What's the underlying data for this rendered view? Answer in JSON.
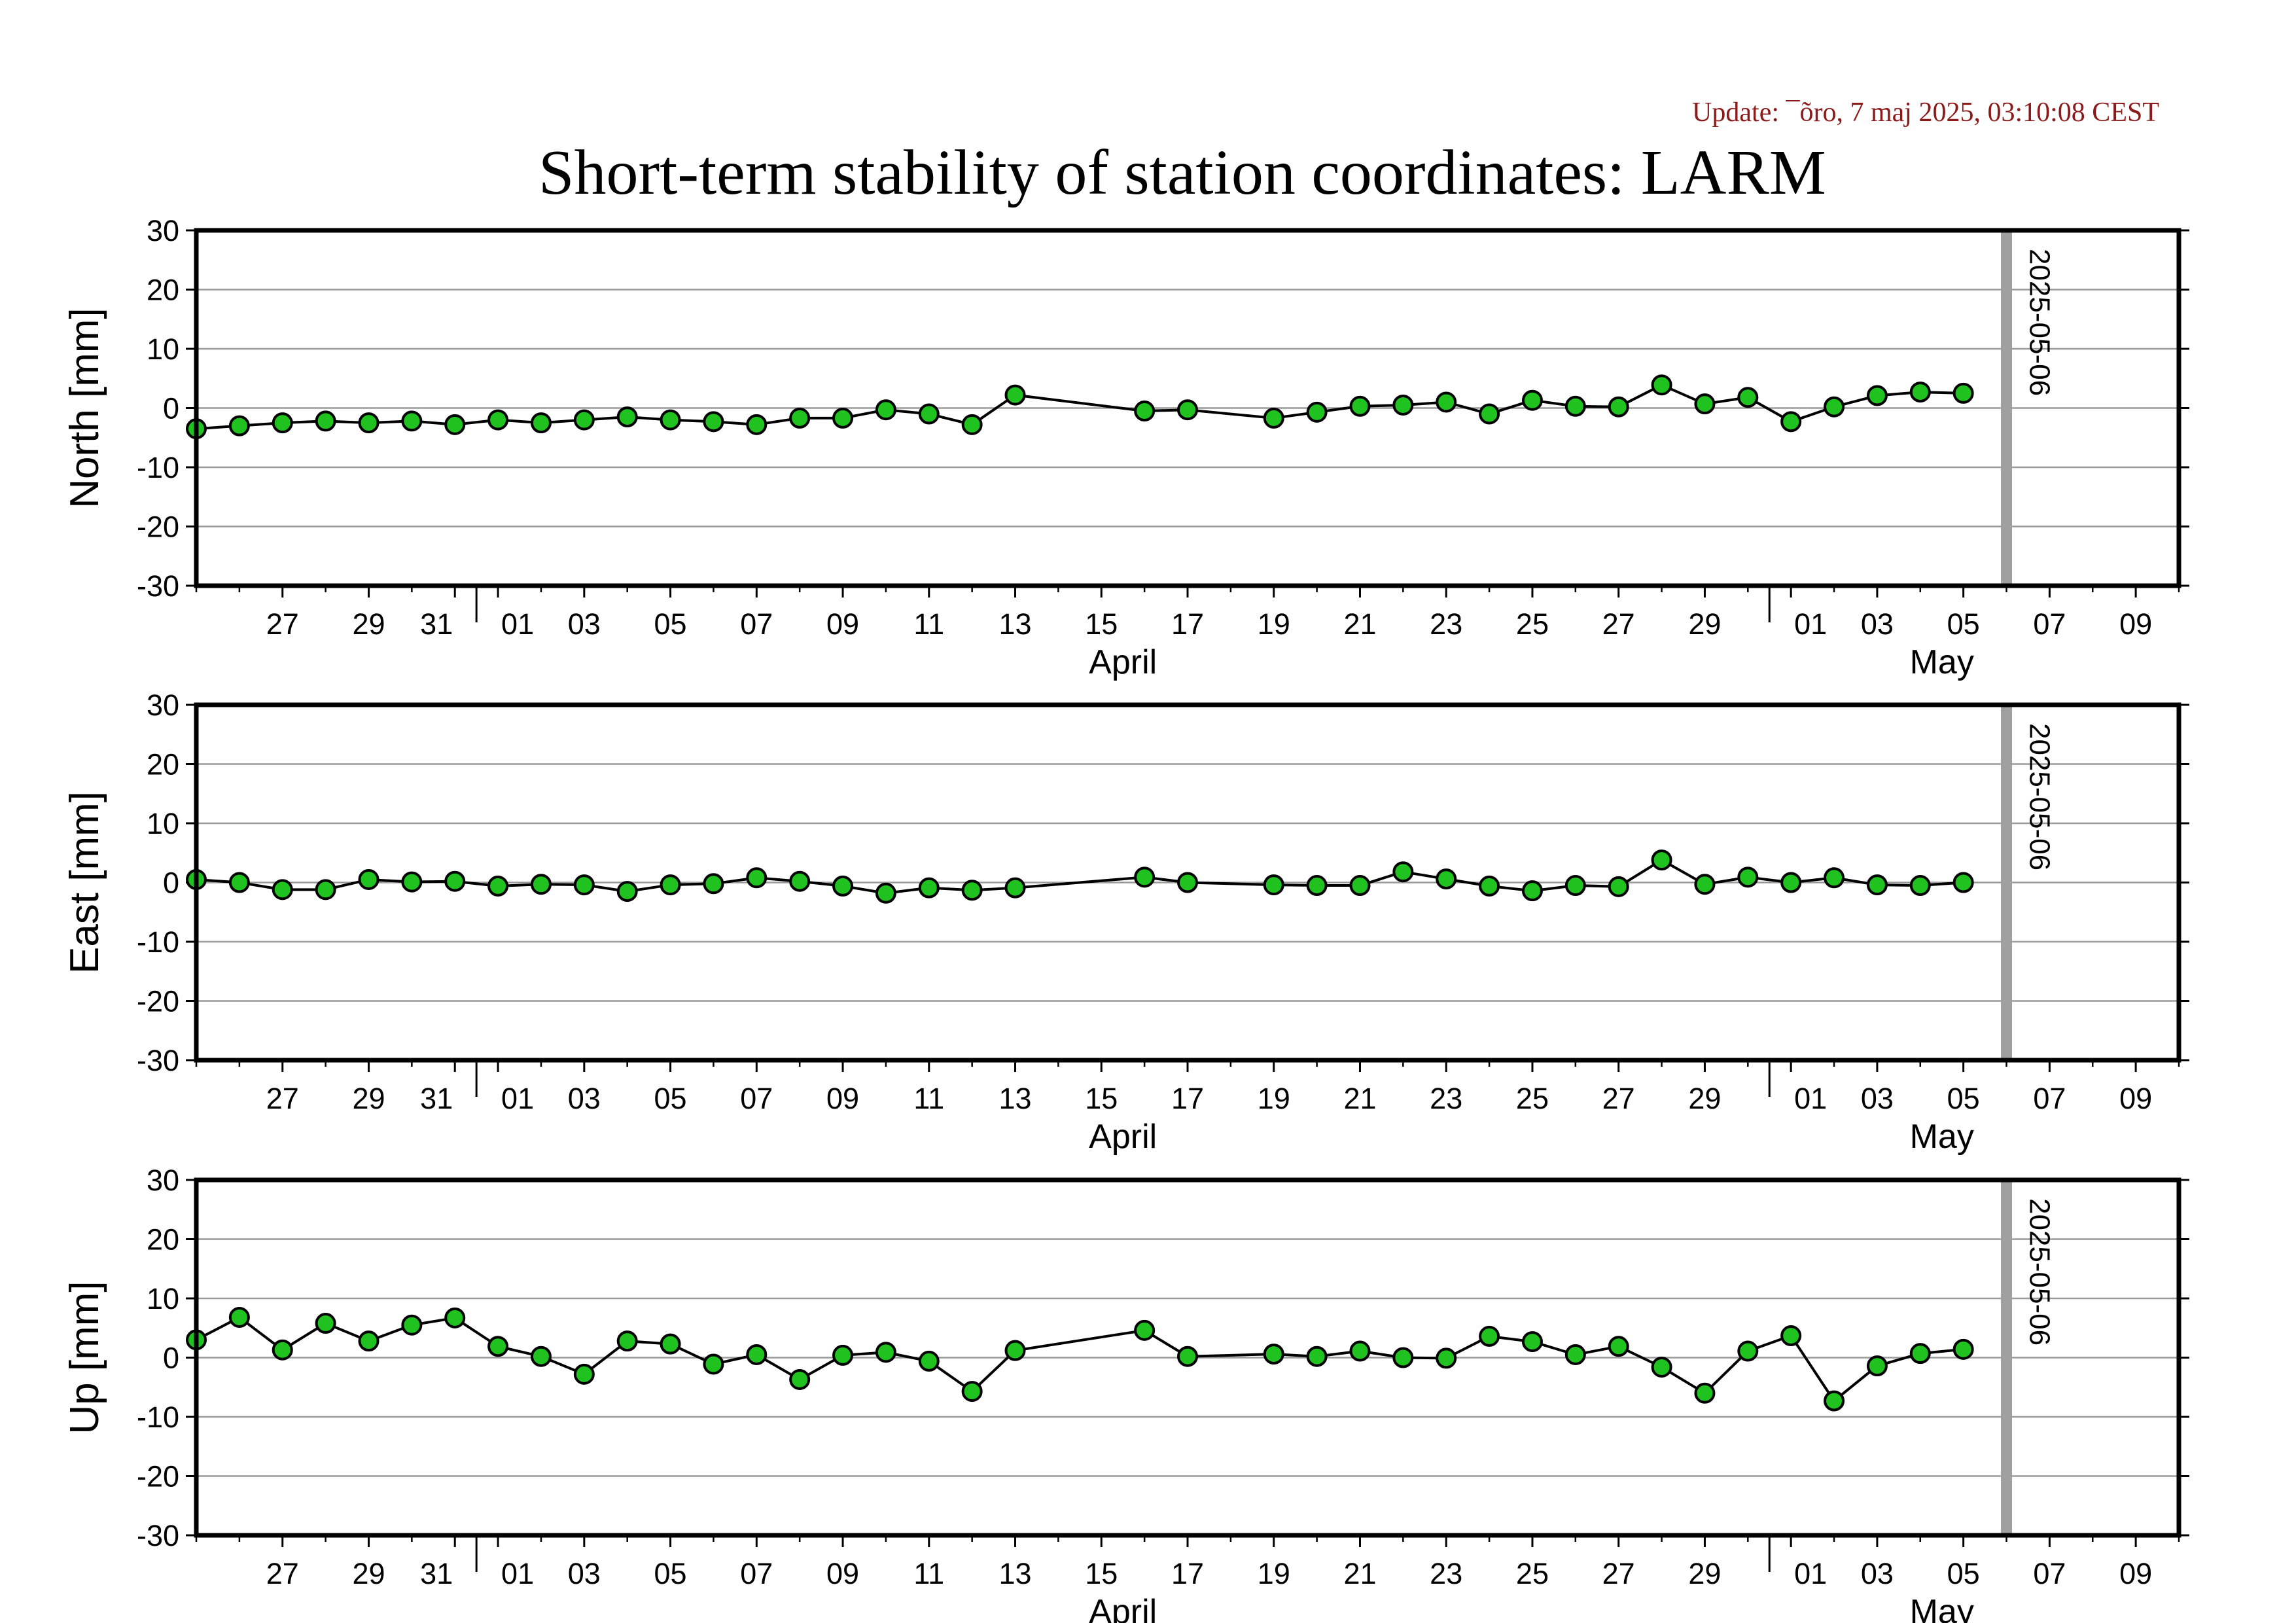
{
  "update_text": "Update: ¯õro, 7 maj 2025, 03:10:08 CEST",
  "title": "Short-term stability of station coordinates: LARM",
  "colors": {
    "marker_fill": "#1fc21f",
    "marker_edge": "#000000",
    "line": "#000000",
    "grid": "#9a9a9a",
    "vline": "#a0a0a0",
    "update": "#8b1a1a"
  },
  "chart_data": [
    {
      "type": "line",
      "ylabel": "North [mm]",
      "ylim": [
        -30,
        30
      ],
      "yticks": [
        30,
        20,
        10,
        0,
        -10,
        -20,
        -30
      ],
      "grid": true,
      "x_axis": {
        "start": "2025-03-25",
        "end": "2025-05-10",
        "tick_labels": [
          "27",
          "29",
          "31",
          "01",
          "03",
          "05",
          "07",
          "09",
          "11",
          "13",
          "15",
          "17",
          "19",
          "21",
          "23",
          "25",
          "27",
          "29",
          "01",
          "03",
          "05",
          "07",
          "09"
        ],
        "months": [
          "April",
          "May"
        ]
      },
      "vertical_marker": {
        "date": "2025-05-06",
        "label": "2025-05-06"
      },
      "series": [
        {
          "x": [
            "2025-03-25",
            "2025-03-26",
            "2025-03-27",
            "2025-03-28",
            "2025-03-29",
            "2025-03-30",
            "2025-03-31",
            "2025-04-01",
            "2025-04-02",
            "2025-04-03",
            "2025-04-04",
            "2025-04-05",
            "2025-04-06",
            "2025-04-07",
            "2025-04-08",
            "2025-04-09",
            "2025-04-10",
            "2025-04-11",
            "2025-04-12",
            "2025-04-13",
            "2025-04-16",
            "2025-04-17",
            "2025-04-19",
            "2025-04-20",
            "2025-04-21",
            "2025-04-22",
            "2025-04-23",
            "2025-04-24",
            "2025-04-25",
            "2025-04-26",
            "2025-04-27",
            "2025-04-28",
            "2025-04-29",
            "2025-04-30",
            "2025-05-01",
            "2025-05-02",
            "2025-05-03",
            "2025-05-04",
            "2025-05-05"
          ],
          "y": [
            -3.5,
            -3,
            -2.5,
            -2.2,
            -2.5,
            -2.2,
            -2.8,
            -2,
            -2.5,
            -2,
            -1.5,
            -2,
            -2.3,
            -2.8,
            -1.7,
            -1.7,
            -0.3,
            -1,
            -2.8,
            2.2,
            -0.5,
            -0.3,
            -1.7,
            -0.7,
            0.3,
            0.5,
            1,
            -1,
            1.3,
            0.3,
            0.2,
            3.9,
            0.7,
            1.8,
            -2.3,
            0.2,
            2.1,
            2.7,
            2.5
          ]
        }
      ]
    },
    {
      "type": "line",
      "ylabel": "East [mm]",
      "ylim": [
        -30,
        30
      ],
      "yticks": [
        30,
        20,
        10,
        0,
        -10,
        -20,
        -30
      ],
      "grid": true,
      "x_axis": {
        "start": "2025-03-25",
        "end": "2025-05-10",
        "tick_labels": [
          "27",
          "29",
          "31",
          "01",
          "03",
          "05",
          "07",
          "09",
          "11",
          "13",
          "15",
          "17",
          "19",
          "21",
          "23",
          "25",
          "27",
          "29",
          "01",
          "03",
          "05",
          "07",
          "09"
        ],
        "months": [
          "April",
          "May"
        ]
      },
      "vertical_marker": {
        "date": "2025-05-06",
        "label": "2025-05-06"
      },
      "series": [
        {
          "x": [
            "2025-03-25",
            "2025-03-26",
            "2025-03-27",
            "2025-03-28",
            "2025-03-29",
            "2025-03-30",
            "2025-03-31",
            "2025-04-01",
            "2025-04-02",
            "2025-04-03",
            "2025-04-04",
            "2025-04-05",
            "2025-04-06",
            "2025-04-07",
            "2025-04-08",
            "2025-04-09",
            "2025-04-10",
            "2025-04-11",
            "2025-04-12",
            "2025-04-13",
            "2025-04-16",
            "2025-04-17",
            "2025-04-19",
            "2025-04-20",
            "2025-04-21",
            "2025-04-22",
            "2025-04-23",
            "2025-04-24",
            "2025-04-25",
            "2025-04-26",
            "2025-04-27",
            "2025-04-28",
            "2025-04-29",
            "2025-04-30",
            "2025-05-01",
            "2025-05-02",
            "2025-05-03",
            "2025-05-04",
            "2025-05-05"
          ],
          "y": [
            0.5,
            0,
            -1.2,
            -1.2,
            0.5,
            0.1,
            0.2,
            -0.6,
            -0.3,
            -0.4,
            -1.5,
            -0.4,
            -0.2,
            0.8,
            0.2,
            -0.6,
            -1.8,
            -0.9,
            -1.3,
            -0.9,
            0.9,
            0,
            -0.4,
            -0.5,
            -0.5,
            1.8,
            0.6,
            -0.6,
            -1.4,
            -0.5,
            -0.7,
            3.8,
            -0.3,
            0.9,
            0,
            0.8,
            -0.4,
            -0.5,
            0
          ]
        }
      ]
    },
    {
      "type": "line",
      "ylabel": "Up [mm]",
      "ylim": [
        -30,
        30
      ],
      "yticks": [
        30,
        20,
        10,
        0,
        -10,
        -20,
        -30
      ],
      "grid": true,
      "x_axis": {
        "start": "2025-03-25",
        "end": "2025-05-10",
        "tick_labels": [
          "27",
          "29",
          "31",
          "01",
          "03",
          "05",
          "07",
          "09",
          "11",
          "13",
          "15",
          "17",
          "19",
          "21",
          "23",
          "25",
          "27",
          "29",
          "01",
          "03",
          "05",
          "07",
          "09"
        ],
        "months": [
          "April",
          "May"
        ]
      },
      "vertical_marker": {
        "date": "2025-05-06",
        "label": "2025-05-06"
      },
      "series": [
        {
          "x": [
            "2025-03-25",
            "2025-03-26",
            "2025-03-27",
            "2025-03-28",
            "2025-03-29",
            "2025-03-30",
            "2025-03-31",
            "2025-04-01",
            "2025-04-02",
            "2025-04-03",
            "2025-04-04",
            "2025-04-05",
            "2025-04-06",
            "2025-04-07",
            "2025-04-08",
            "2025-04-09",
            "2025-04-10",
            "2025-04-11",
            "2025-04-12",
            "2025-04-13",
            "2025-04-16",
            "2025-04-17",
            "2025-04-19",
            "2025-04-20",
            "2025-04-21",
            "2025-04-22",
            "2025-04-23",
            "2025-04-24",
            "2025-04-25",
            "2025-04-26",
            "2025-04-27",
            "2025-04-28",
            "2025-04-29",
            "2025-04-30",
            "2025-05-01",
            "2025-05-02",
            "2025-05-03",
            "2025-05-04",
            "2025-05-05"
          ],
          "y": [
            3,
            6.8,
            1.3,
            5.8,
            2.8,
            5.5,
            6.7,
            1.9,
            0.2,
            -2.8,
            2.8,
            2.3,
            -1.1,
            0.5,
            -3.7,
            0.4,
            0.9,
            -0.6,
            -5.7,
            1.2,
            4.6,
            0.2,
            0.6,
            0.2,
            1.1,
            0,
            -0.1,
            3.6,
            2.7,
            0.5,
            1.9,
            -1.6,
            -6,
            1.1,
            3.7,
            -7.3,
            -1.4,
            0.7,
            1.4
          ]
        }
      ]
    }
  ]
}
